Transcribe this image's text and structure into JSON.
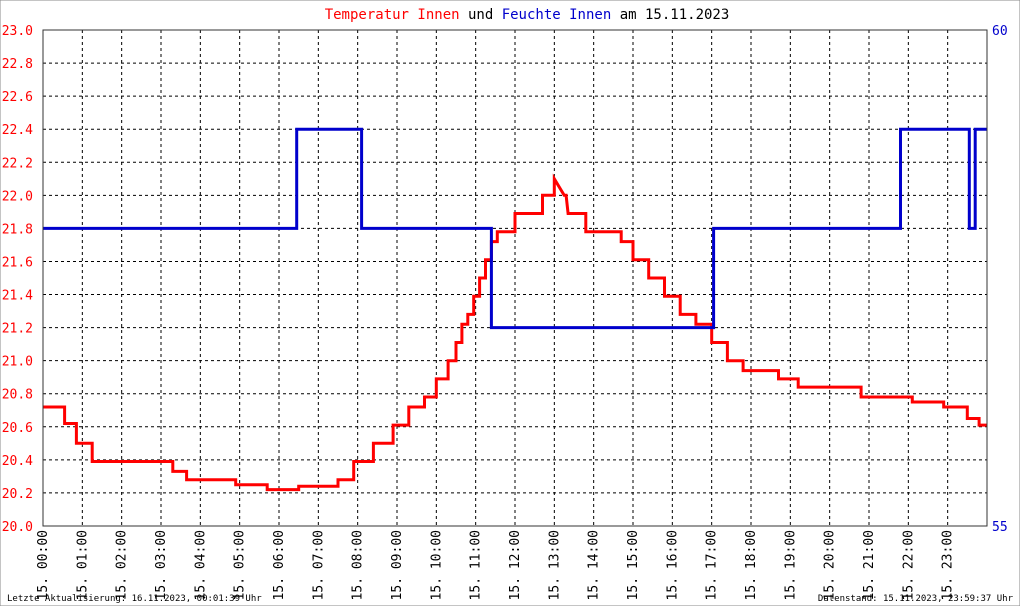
{
  "title": {
    "part1": "Temperatur Innen",
    "part2": " und ",
    "part3": "Feuchte Innen",
    "part4": " am 15.11.2023"
  },
  "footer": {
    "left": "Letzte Aktualisierung: 16.11.2023, 00:01:39 Uhr",
    "right": "Datenstand: 15.11.2023, 23:59:37 Uhr"
  },
  "colors": {
    "temperature": "#ff0000",
    "humidity": "#0000cc",
    "title_black": "#000000",
    "grid": "#000000",
    "border": "#333333"
  },
  "chart_data": {
    "type": "line",
    "x_unit": "hours",
    "xlim": [
      0,
      24
    ],
    "xticks": [
      "15. 00:00",
      "15. 01:00",
      "15. 02:00",
      "15. 03:00",
      "15. 04:00",
      "15. 05:00",
      "15. 06:00",
      "15. 07:00",
      "15. 08:00",
      "15. 09:00",
      "15. 10:00",
      "15. 11:00",
      "15. 12:00",
      "15. 13:00",
      "15. 14:00",
      "15. 15:00",
      "15. 16:00",
      "15. 17:00",
      "15. 18:00",
      "15. 19:00",
      "15. 20:00",
      "15. 21:00",
      "15. 22:00",
      "15. 23:00"
    ],
    "y_left": {
      "lim": [
        20.0,
        23.0
      ],
      "ticks": [
        "20.0",
        "20.2",
        "20.4",
        "20.6",
        "20.8",
        "21.0",
        "21.2",
        "21.4",
        "21.6",
        "21.8",
        "22.0",
        "22.2",
        "22.4",
        "22.6",
        "22.8",
        "23.0"
      ]
    },
    "y_right": {
      "lim": [
        55,
        60
      ],
      "ticks": [
        "55",
        "60"
      ]
    },
    "grid": true,
    "series": [
      {
        "name": "Temperatur Innen",
        "axis": "left",
        "color": "#ff0000",
        "x": [
          0,
          0.55,
          0.55,
          0.85,
          0.85,
          1.25,
          1.25,
          3.3,
          3.3,
          3.65,
          3.65,
          4.9,
          4.9,
          5.7,
          5.7,
          6.5,
          6.5,
          7.5,
          7.5,
          7.9,
          7.9,
          8.4,
          8.4,
          8.9,
          8.9,
          9.3,
          9.3,
          9.7,
          9.7,
          10.0,
          10.0,
          10.3,
          10.3,
          10.5,
          10.5,
          10.65,
          10.65,
          10.8,
          10.8,
          10.95,
          10.95,
          11.1,
          11.1,
          11.25,
          11.25,
          11.4,
          11.4,
          11.55,
          11.55,
          11.8,
          11.8,
          12.0,
          12.0,
          12.7,
          12.7,
          13.0,
          13.0,
          13.25,
          13.3,
          13.35,
          13.35,
          13.8,
          13.8,
          14.7,
          14.7,
          15.0,
          15.0,
          15.4,
          15.4,
          15.8,
          15.8,
          16.2,
          16.2,
          16.6,
          16.6,
          17.0,
          17.0,
          17.4,
          17.4,
          17.8,
          17.8,
          18.7,
          18.7,
          19.2,
          19.2,
          20.8,
          20.8,
          22.1,
          22.1,
          22.9,
          22.9,
          23.5,
          23.5,
          23.8,
          23.8,
          24.0
        ],
        "y": [
          20.72,
          20.72,
          20.62,
          20.62,
          20.5,
          20.5,
          20.39,
          20.39,
          20.33,
          20.33,
          20.28,
          20.28,
          20.25,
          20.25,
          20.22,
          20.22,
          20.24,
          20.24,
          20.28,
          20.28,
          20.39,
          20.39,
          20.5,
          20.5,
          20.61,
          20.61,
          20.72,
          20.72,
          20.78,
          20.78,
          20.89,
          20.89,
          21.0,
          21.0,
          21.11,
          21.11,
          21.22,
          21.22,
          21.28,
          21.28,
          21.39,
          21.39,
          21.5,
          21.5,
          21.61,
          21.61,
          21.72,
          21.72,
          21.78,
          21.78,
          21.78,
          21.78,
          21.89,
          21.89,
          22.0,
          22.0,
          22.1,
          22.0,
          22.0,
          21.89,
          21.89,
          21.89,
          21.78,
          21.78,
          21.72,
          21.72,
          21.61,
          21.61,
          21.5,
          21.5,
          21.39,
          21.39,
          21.28,
          21.28,
          21.22,
          21.22,
          21.11,
          21.11,
          21.0,
          21.0,
          20.94,
          20.94,
          20.89,
          20.89,
          20.84,
          20.84,
          20.78,
          20.78,
          20.75,
          20.75,
          20.72,
          20.72,
          20.65,
          20.65,
          20.61,
          20.61
        ]
      },
      {
        "name": "Feuchte Innen",
        "axis": "right",
        "color": "#0000cc",
        "x": [
          0,
          6.45,
          6.45,
          6.72,
          6.72,
          8.1,
          8.1,
          8.45,
          8.45,
          11.4,
          11.4,
          17.05,
          17.05,
          21.8,
          21.8,
          22.0,
          22.0,
          23.55,
          23.55,
          23.7,
          23.7,
          24.0
        ],
        "y": [
          58.0,
          58.0,
          59.0,
          59.0,
          59.0,
          59.0,
          58.0,
          58.0,
          58.0,
          58.0,
          57.0,
          57.0,
          58.0,
          58.0,
          59.0,
          59.0,
          59.0,
          59.0,
          58.0,
          58.0,
          59.0,
          59.0
        ]
      }
    ]
  }
}
